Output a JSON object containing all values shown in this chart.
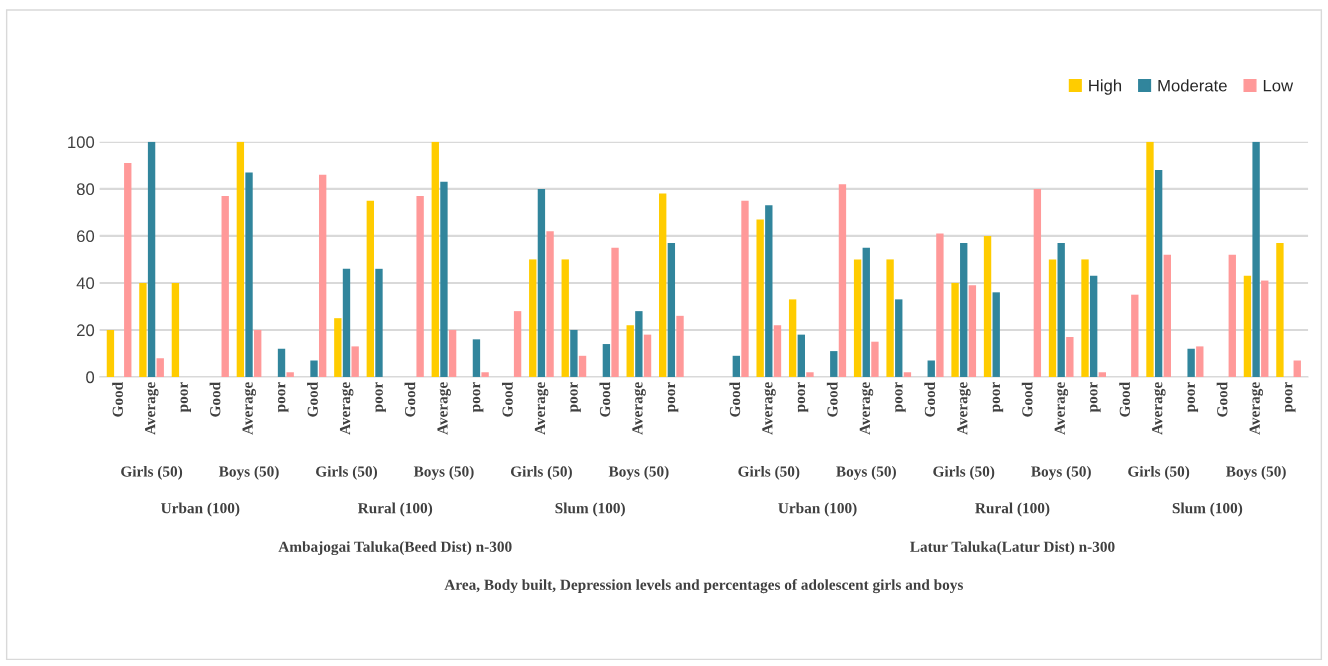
{
  "chart_data": {
    "type": "bar",
    "categories": [
      "Good",
      "Average",
      "poor",
      "Good",
      "Average",
      "poor",
      "Good",
      "Average",
      "poor",
      "Good",
      "Average",
      "poor",
      "Good",
      "Average",
      "poor",
      "Good",
      "Average",
      "poor",
      null,
      "Good",
      "Average",
      "poor",
      "Good",
      "Average",
      "poor",
      "Good",
      "Average",
      "poor",
      "Good",
      "Average",
      "poor",
      "Good",
      "Average",
      "poor",
      "Good",
      "Average",
      "poor"
    ],
    "series": [
      {
        "name": "High",
        "color": "#ffcc00",
        "values": [
          20,
          40,
          40,
          0,
          100,
          0,
          0,
          25,
          75,
          0,
          100,
          0,
          0,
          50,
          50,
          0,
          22,
          78,
          null,
          0,
          67,
          33,
          0,
          50,
          50,
          0,
          40,
          60,
          0,
          50,
          50,
          0,
          100,
          0,
          0,
          43,
          57
        ]
      },
      {
        "name": "Moderate",
        "color": "#31859c",
        "values": [
          0,
          100,
          0,
          0,
          87,
          12,
          7,
          46,
          46,
          0,
          83,
          16,
          0,
          80,
          20,
          14,
          28,
          57,
          null,
          9,
          73,
          18,
          11,
          55,
          33,
          7,
          57,
          36,
          0,
          57,
          43,
          0,
          88,
          12,
          0,
          100,
          0
        ]
      },
      {
        "name": "Low",
        "color": "#ff9999",
        "values": [
          91,
          8,
          0,
          77,
          20,
          2,
          86,
          13,
          0,
          77,
          20,
          2,
          28,
          62,
          9,
          55,
          18,
          26,
          null,
          75,
          22,
          2,
          82,
          15,
          2,
          61,
          39,
          0,
          80,
          17,
          2,
          35,
          52,
          13,
          52,
          41,
          7
        ]
      }
    ],
    "annotations": [
      "Girls (50)",
      "Boys (50)",
      "Girls (50)",
      "Boys (50)",
      "Girls (50)",
      "Boys (50)",
      "Girls (50)",
      "Boys (50)",
      "Girls (50)",
      "Boys (50)",
      "Girls (50)",
      "Boys (50)",
      "Urban (100)",
      "Rural (100)",
      "Slum (100)",
      "Urban (100)",
      "Rural (100)",
      "Slum (100)",
      "Ambajogai Taluka(Beed Dist) n-300",
      "Latur Taluka(Latur Dist) n-300",
      "Area, Body built, Depression levels and percentages of adolescent girls and boys"
    ],
    "ylim": [
      0,
      100
    ],
    "yticks": [
      0,
      20,
      40,
      60,
      80,
      100
    ],
    "grid": "y",
    "legend": "top right"
  }
}
